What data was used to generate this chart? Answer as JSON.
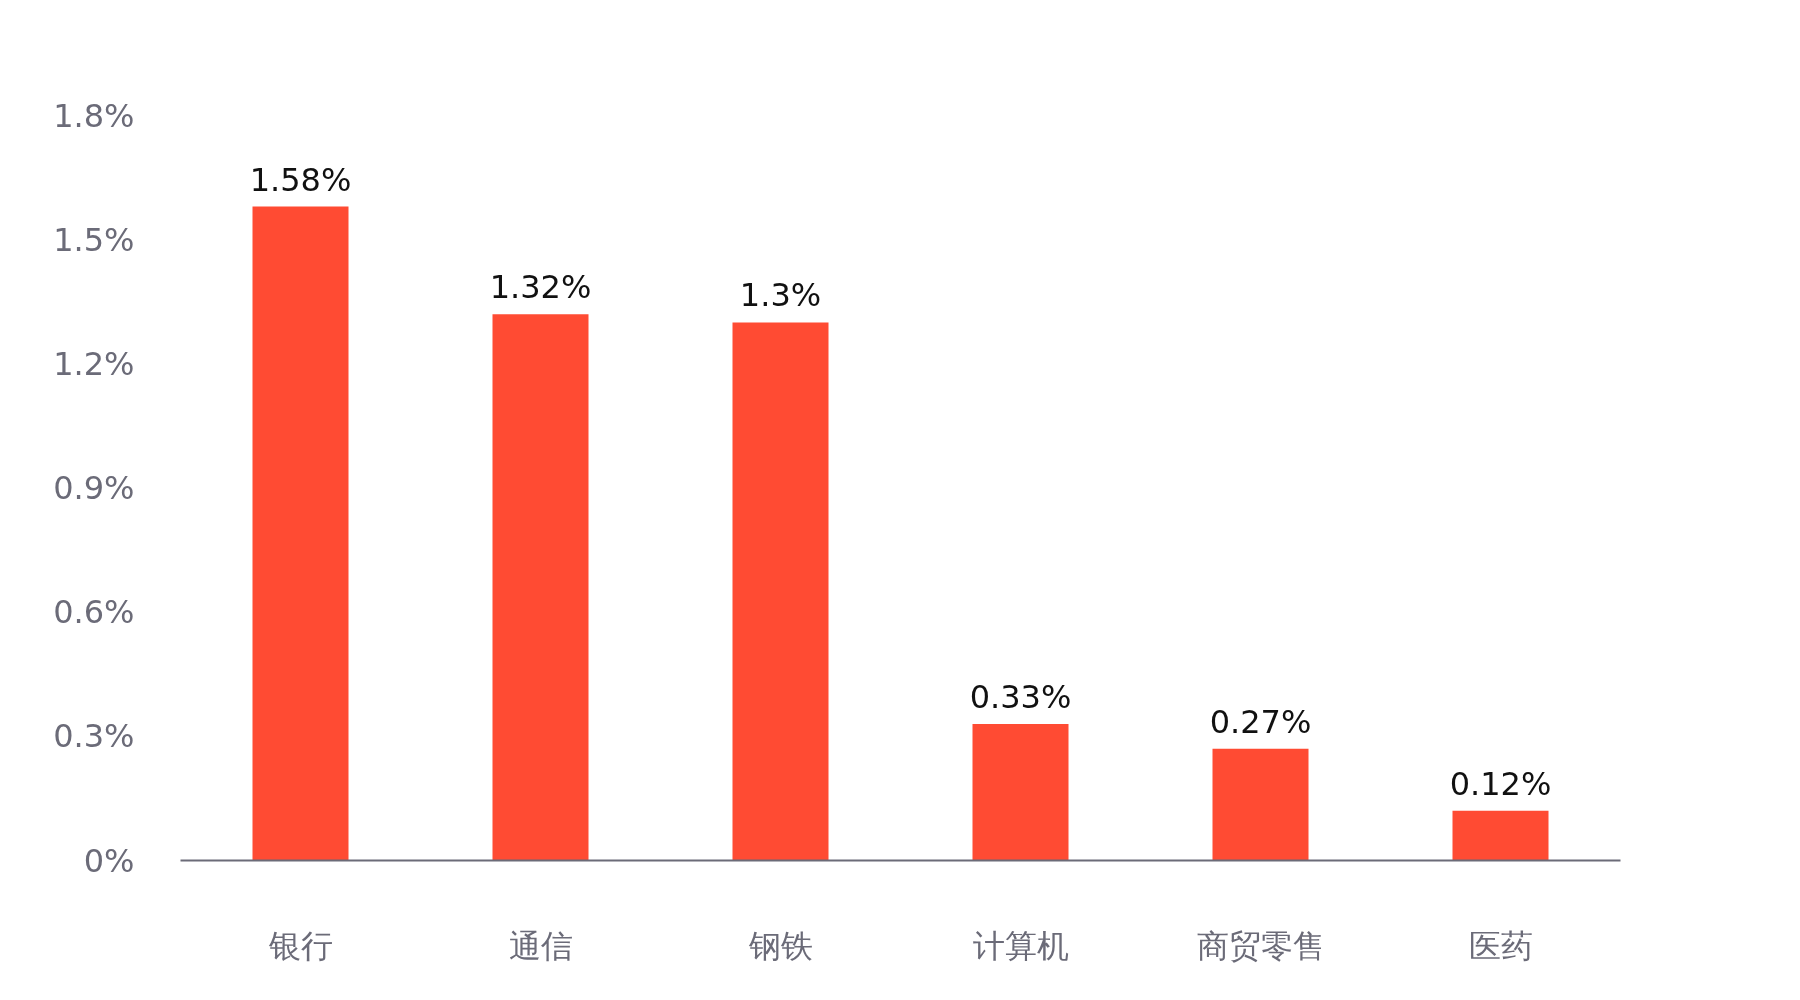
{
  "chart_data": {
    "type": "bar",
    "categories": [
      "银行",
      "通信",
      "钢铁",
      "计算机",
      "商贸零售",
      "医药"
    ],
    "values": [
      1.58,
      1.32,
      1.3,
      0.33,
      0.27,
      0.12
    ],
    "value_labels": [
      "1.58%",
      "1.32%",
      "1.3%",
      "0.33%",
      "0.27%",
      "0.12%"
    ],
    "color": "#ff4b33",
    "ylim": [
      0,
      1.8
    ],
    "yticks": [
      {
        "value": 0,
        "label": "0%"
      },
      {
        "value": 0.3,
        "label": "0.3%"
      },
      {
        "value": 0.6,
        "label": "0.6%"
      },
      {
        "value": 0.9,
        "label": "0.9%"
      },
      {
        "value": 1.2,
        "label": "1.2%"
      },
      {
        "value": 1.5,
        "label": "1.5%"
      },
      {
        "value": 1.8,
        "label": "1.8%"
      }
    ],
    "grid": false
  }
}
